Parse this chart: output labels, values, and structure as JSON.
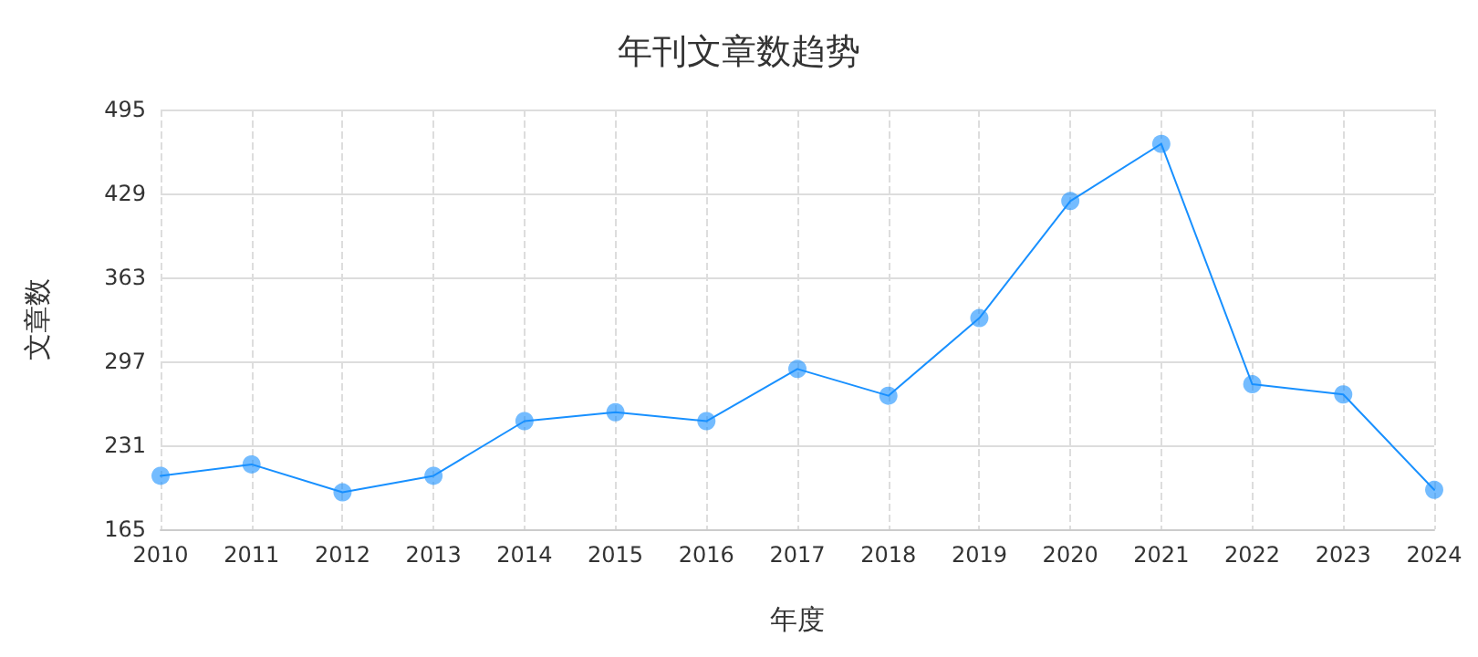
{
  "chart_data": {
    "type": "line",
    "title": "年刊文章数趋势",
    "xlabel": "年度",
    "ylabel": "文章数",
    "categories": [
      "2010",
      "2011",
      "2012",
      "2013",
      "2014",
      "2015",
      "2016",
      "2017",
      "2018",
      "2019",
      "2020",
      "2021",
      "2022",
      "2023",
      "2024"
    ],
    "series": [
      {
        "color": "#1890ff",
        "values": [
          207,
          216,
          194,
          207,
          250,
          257,
          250,
          291,
          270,
          331,
          423,
          468,
          279,
          271,
          196
        ]
      }
    ],
    "ylim": [
      165,
      495
    ],
    "yticks": [
      165,
      231,
      297,
      363,
      429,
      495
    ],
    "grid": true,
    "marker": "circle",
    "line_style": "solid"
  }
}
